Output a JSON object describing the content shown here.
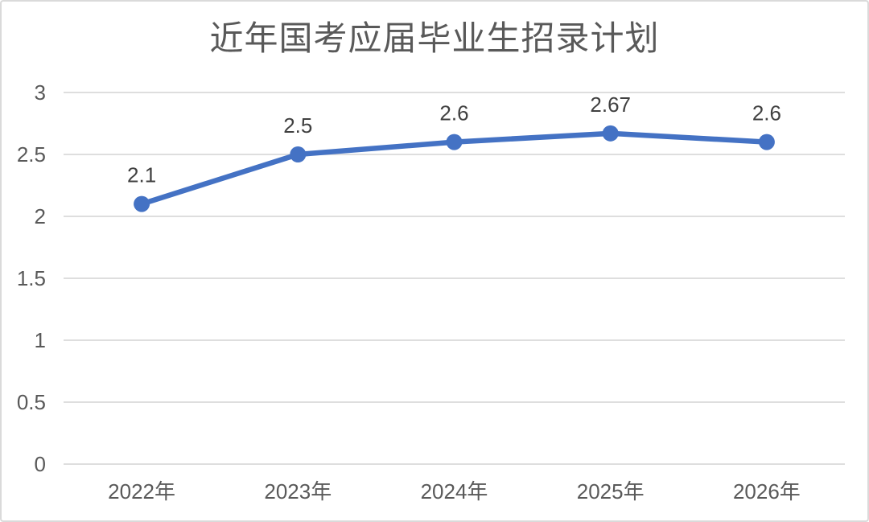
{
  "chart_data": {
    "type": "line",
    "title": "近年国考应届毕业生招录计划",
    "categories": [
      "2022年",
      "2023年",
      "2024年",
      "2025年",
      "2026年"
    ],
    "values": [
      2.1,
      2.5,
      2.6,
      2.67,
      2.6
    ],
    "data_labels": [
      "2.1",
      "2.5",
      "2.6",
      "2.67",
      "2.6"
    ],
    "y_ticks": [
      0,
      0.5,
      1,
      1.5,
      2,
      2.5,
      3
    ],
    "y_tick_labels": [
      "0",
      "0.5",
      "1",
      "1.5",
      "2",
      "2.5",
      "3"
    ],
    "ylim": [
      0,
      3
    ],
    "xlabel": "",
    "ylabel": "",
    "grid": true,
    "legend": false,
    "colors": {
      "line": "#4472C4",
      "marker": "#4472C4",
      "gridline": "#d9d9d9",
      "axis_line": "#d9d9d9",
      "axis_text": "#595959",
      "data_label_text": "#404040",
      "title_text": "#595959"
    }
  }
}
